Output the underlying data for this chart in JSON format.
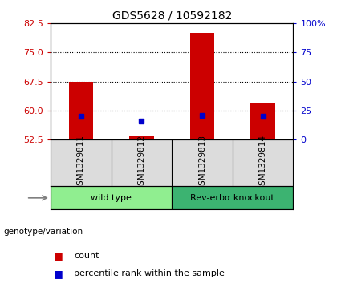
{
  "title": "GDS5628 / 10592182",
  "samples": [
    "GSM1329811",
    "GSM1329812",
    "GSM1329813",
    "GSM1329814"
  ],
  "bar_bottom": 52.5,
  "bar_tops": [
    67.5,
    53.3,
    80.0,
    62.0
  ],
  "percentile_ranks": [
    20.0,
    16.0,
    21.0,
    20.0
  ],
  "left_ylim": [
    52.5,
    82.5
  ],
  "right_ylim": [
    0,
    100
  ],
  "left_yticks": [
    52.5,
    60.0,
    67.5,
    75.0,
    82.5
  ],
  "right_yticks": [
    0,
    25,
    50,
    75,
    100
  ],
  "right_yticklabels": [
    "0",
    "25",
    "50",
    "75",
    "100%"
  ],
  "bar_color": "#CC0000",
  "dot_color": "#0000CC",
  "grid_color": "black",
  "grid_yticks": [
    60.0,
    67.5,
    75.0
  ],
  "left_tick_color": "#CC0000",
  "right_tick_color": "#0000CC",
  "group_label": "genotype/variation",
  "group1_label": "wild type",
  "group2_label": "Rev-erbα knockout",
  "group1_color": "#90EE90",
  "group2_color": "#3CB371",
  "legend_count": "count",
  "legend_percentile": "percentile rank within the sample",
  "bg_color": "#DCDCDC"
}
